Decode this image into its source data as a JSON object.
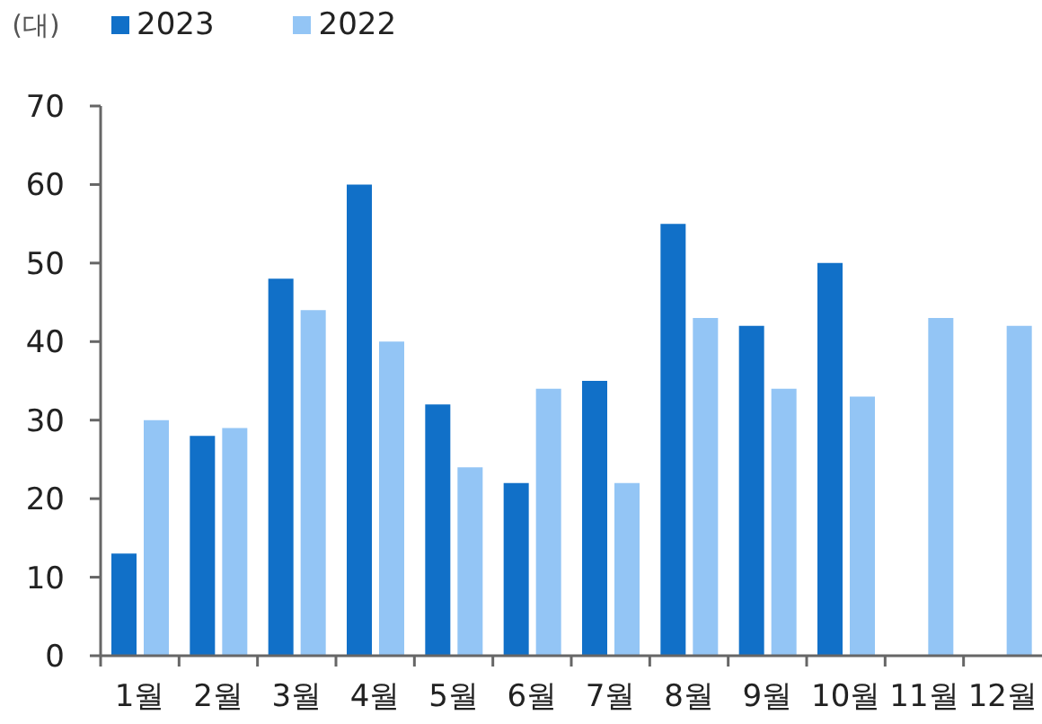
{
  "chart_data": {
    "type": "bar",
    "ylabel": "(대)",
    "categories": [
      "1월",
      "2월",
      "3월",
      "4월",
      "5월",
      "6월",
      "7월",
      "8월",
      "9월",
      "10월",
      "11월",
      "12월"
    ],
    "series": [
      {
        "name": "2023",
        "color": "#1170c8",
        "values": [
          13,
          28,
          48,
          60,
          32,
          22,
          35,
          55,
          42,
          50,
          null,
          null
        ]
      },
      {
        "name": "2022",
        "color": "#93c5f5",
        "values": [
          30,
          29,
          44,
          40,
          24,
          34,
          22,
          43,
          34,
          33,
          43,
          42
        ]
      }
    ],
    "ylim": [
      0,
      70
    ],
    "yticks": [
      0,
      10,
      20,
      30,
      40,
      50,
      60,
      70
    ],
    "legend": "top left"
  }
}
